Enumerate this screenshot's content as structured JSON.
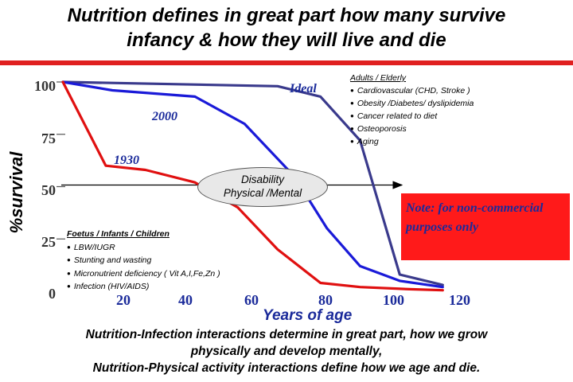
{
  "title_line1": "Nutrition defines in great part how many survive",
  "title_line2": "infancy & how they will live and die",
  "footer_line1": "Nutrition-Infection interactions determine in great part, how we grow",
  "footer_line2": "physically and develop mentally,",
  "footer_line3": "Nutrition-Physical activity  interactions define  how we age and die.",
  "adults": {
    "heading": "Adults   /   Elderly",
    "items": [
      "Cardiovascular (CHD,      Stroke )",
      "Obesity /Diabetes/  dyslipidemia",
      "Cancer  related  to  diet",
      "Osteoporosis",
      "Aging"
    ]
  },
  "foetus": {
    "heading": "Foetus  /  Infants  /   Children",
    "items": [
      "LBW/IUGR",
      "Stunting   and  wasting",
      "Micronutrient    deficiency   ( Vit  A,I,Fe,Zn  )",
      "Infection   (HIV/AIDS)"
    ]
  },
  "disability_line1": "Disability",
  "disability_line2": "Physical   /Mental",
  "note": "Note: for non-commercial purposes only",
  "colors": {
    "ideal": "#3a3a8c",
    "y2000": "#1a1ad8",
    "y1930": "#e01010",
    "title_rule": "#e02020"
  },
  "chart_data": {
    "type": "line",
    "title": "Nutrition defines in great part how many survive infancy & how they will live and die",
    "xlabel": "Years  of age",
    "ylabel": "%survival",
    "xlim": [
      0,
      120
    ],
    "ylim": [
      0,
      100
    ],
    "x_ticks": [
      "20",
      "40",
      "60",
      "80",
      "100",
      "120"
    ],
    "y_ticks": [
      "0",
      "25",
      "50",
      "75",
      "100"
    ],
    "grid": false,
    "series": [
      {
        "name": "Ideal",
        "x": [
          0,
          65,
          78,
          90,
          102,
          115
        ],
        "y": [
          100,
          98,
          93,
          72,
          8,
          3
        ]
      },
      {
        "name": "2000",
        "x": [
          0,
          15,
          40,
          55,
          70,
          80,
          90,
          102,
          115
        ],
        "y": [
          100,
          96,
          93,
          80,
          55,
          30,
          12,
          5,
          2
        ]
      },
      {
        "name": "1930",
        "x": [
          0,
          13,
          25,
          40,
          53,
          65,
          78,
          90,
          105,
          115
        ],
        "y": [
          100,
          60,
          58,
          52,
          40,
          20,
          4,
          2,
          1,
          0.5
        ]
      }
    ]
  }
}
